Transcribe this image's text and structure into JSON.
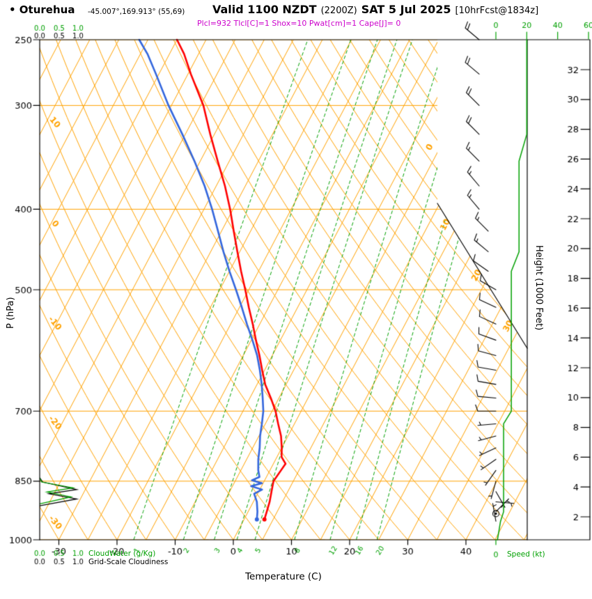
{
  "header": {
    "station": "• Oturehua",
    "coords": "-45.007°,169.913° (55,69)",
    "valid_time": "Valid 1100 NZDT",
    "valid_zulu": "(2200Z)",
    "valid_date": "SAT 5 Jul 2025",
    "forecast_tag": "[10hrFcst@1834z]",
    "params_line": "Plcl=932 Tlcl[C]=1 Shox=10 Pwat[cm]=1 Cape[J]= 0"
  },
  "axes": {
    "pressure": {
      "title": "P (hPa)",
      "ticks": [
        250,
        300,
        400,
        500,
        700,
        850,
        1000
      ],
      "scale": "log"
    },
    "temperature": {
      "title": "Temperature (C)",
      "ticks": [
        -30,
        -20,
        -10,
        0,
        10,
        20,
        30,
        40
      ]
    },
    "height": {
      "title": "Height (1000 Feet)",
      "ticks": [
        2,
        4,
        6,
        8,
        10,
        12,
        14,
        16,
        18,
        20,
        22,
        24,
        26,
        28,
        30,
        32
      ]
    },
    "speed": {
      "title": "Speed (kt)",
      "ticks": [
        0,
        20,
        40,
        60
      ]
    },
    "cloudwater_scale": {
      "labels": [
        "0.0",
        "0.5",
        "1.0"
      ]
    },
    "cloudiness_scale": {
      "labels": [
        "0.0",
        "0.5",
        "1.0"
      ]
    }
  },
  "legend": {
    "cloudwater": "CloudWater (g/Kg)",
    "cloudiness": "Grid-Scale Cloudiness"
  },
  "chart_data": {
    "type": "line",
    "variant": "skew-t-log-p-sounding",
    "title": "Oturehua sounding valid 1100 NZDT SAT 5 Jul 2025",
    "lcl": {
      "pressure_hpa": 932,
      "temp_c": 1
    },
    "indices": {
      "showalter": 10,
      "pwat_cm": 1,
      "cape_j": 0
    },
    "isotherm_label_values": [
      0,
      10,
      20,
      30
    ],
    "dry_adiabat_label_values": [
      10,
      0,
      -10,
      -20,
      -30
    ],
    "mixing_ratio_lines": [
      1,
      2,
      3,
      4,
      5,
      8,
      12,
      16,
      20
    ],
    "temperature_profile": {
      "pressure_hpa": [
        945,
        925,
        900,
        875,
        850,
        825,
        810,
        795,
        775,
        750,
        725,
        700,
        675,
        650,
        625,
        600,
        575,
        550,
        525,
        500,
        475,
        450,
        425,
        400,
        375,
        350,
        325,
        300,
        275,
        260,
        250
      ],
      "temp_c": [
        3.5,
        3.2,
        2.8,
        2.2,
        1.6,
        1.9,
        2.1,
        0.8,
        0.0,
        -1.2,
        -2.8,
        -4.4,
        -6.4,
        -8.6,
        -10.4,
        -12.2,
        -14.2,
        -16.2,
        -18.4,
        -20.6,
        -23.0,
        -25.4,
        -27.9,
        -30.5,
        -33.5,
        -37.0,
        -40.7,
        -44.5,
        -49.5,
        -52.5,
        -55.0
      ]
    },
    "dewpoint_profile": {
      "pressure_hpa": [
        945,
        925,
        900,
        880,
        870,
        862,
        855,
        848,
        840,
        825,
        800,
        775,
        750,
        725,
        700,
        675,
        650,
        625,
        600,
        575,
        550,
        525,
        500,
        475,
        450,
        425,
        400,
        375,
        350,
        325,
        300,
        275,
        260,
        250
      ],
      "temp_c": [
        2.2,
        1.6,
        0.6,
        -0.6,
        0.4,
        -1.8,
        -0.2,
        -2.2,
        -1.2,
        -2.0,
        -3.0,
        -3.8,
        -4.8,
        -5.6,
        -6.5,
        -7.8,
        -9.2,
        -10.8,
        -12.6,
        -14.8,
        -17.2,
        -19.6,
        -22.2,
        -25.0,
        -27.8,
        -30.6,
        -33.6,
        -37.0,
        -41.0,
        -45.5,
        -50.5,
        -55.5,
        -58.8,
        -61.5
      ]
    },
    "wind_profile": [
      {
        "p": 250,
        "dir": 310,
        "kt": 20
      },
      {
        "p": 275,
        "dir": 310,
        "kt": 20
      },
      {
        "p": 300,
        "dir": 315,
        "kt": 20
      },
      {
        "p": 325,
        "dir": 315,
        "kt": 20
      },
      {
        "p": 350,
        "dir": 315,
        "kt": 15
      },
      {
        "p": 375,
        "dir": 320,
        "kt": 15
      },
      {
        "p": 400,
        "dir": 320,
        "kt": 15
      },
      {
        "p": 425,
        "dir": 315,
        "kt": 15
      },
      {
        "p": 450,
        "dir": 310,
        "kt": 15
      },
      {
        "p": 475,
        "dir": 305,
        "kt": 10
      },
      {
        "p": 500,
        "dir": 300,
        "kt": 10
      },
      {
        "p": 525,
        "dir": 295,
        "kt": 10
      },
      {
        "p": 550,
        "dir": 295,
        "kt": 10
      },
      {
        "p": 575,
        "dir": 290,
        "kt": 10
      },
      {
        "p": 600,
        "dir": 285,
        "kt": 10
      },
      {
        "p": 625,
        "dir": 280,
        "kt": 10
      },
      {
        "p": 650,
        "dir": 280,
        "kt": 10
      },
      {
        "p": 675,
        "dir": 275,
        "kt": 10
      },
      {
        "p": 700,
        "dir": 270,
        "kt": 10
      },
      {
        "p": 725,
        "dir": 265,
        "kt": 5
      },
      {
        "p": 750,
        "dir": 255,
        "kt": 5
      },
      {
        "p": 775,
        "dir": 245,
        "kt": 5
      },
      {
        "p": 800,
        "dir": 235,
        "kt": 5
      },
      {
        "p": 825,
        "dir": 215,
        "kt": 5
      },
      {
        "p": 850,
        "dir": 195,
        "kt": 5
      },
      {
        "p": 875,
        "dir": 150,
        "kt": 5
      },
      {
        "p": 900,
        "dir": 95,
        "kt": 5
      },
      {
        "p": 925,
        "dir": 45,
        "kt": 5
      },
      {
        "p": 950,
        "dir": 350,
        "kt": 3
      },
      {
        "p": 975,
        "dir": 340,
        "kt": 2
      },
      {
        "p": 1000,
        "dir": 335,
        "kt": 1
      }
    ],
    "calm_marker": {
      "p": 930
    },
    "cloud_water": {
      "pressure_hpa": [
        905,
        888,
        876,
        866,
        852,
        842
      ],
      "g_per_kg": [
        0,
        0.85,
        0.2,
        0.9,
        0.05,
        0
      ]
    },
    "cloudiness": {
      "pressure_hpa": [
        910,
        893,
        880,
        870,
        852,
        842
      ],
      "fraction": [
        0,
        1.0,
        0.25,
        1.0,
        0.08,
        0
      ]
    }
  },
  "colors": {
    "grid_orange": "#ffa200",
    "moisture_green": "#00a000",
    "temp_red": "#ff0000",
    "dewpoint_blue": "#3366dd",
    "params_magenta": "#cc00cc",
    "axis_black": "#000000"
  }
}
